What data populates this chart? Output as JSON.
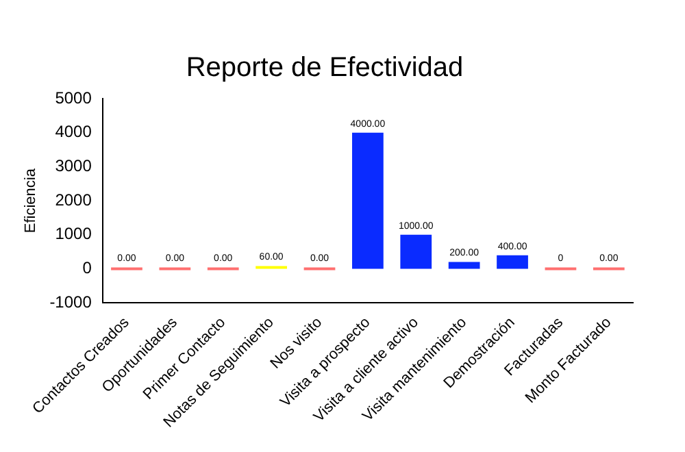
{
  "chart_data": {
    "type": "bar",
    "title": "Reporte de Efectividad",
    "ylabel": "Eficiencia",
    "categories": [
      "Contactos Creados",
      "Oportunidades",
      "Primer Contacto",
      "Notas de Seguimiento",
      "Nos visito",
      "Visita a prospecto",
      "Visita a cliente activo",
      "Visita mantenimiento",
      "Demostración",
      "Facturadas",
      "Monto Facturado"
    ],
    "values": [
      0,
      0,
      0,
      60,
      0,
      4000,
      1000,
      200,
      400,
      0,
      0
    ],
    "colors": [
      "#ff6f6f",
      "#ff6f6f",
      "#ff6f6f",
      "#ffff00",
      "#ff6f6f",
      "#0a2bff",
      "#0a2bff",
      "#0a2bff",
      "#0a2bff",
      "#ff6f6f",
      "#ff6f6f"
    ],
    "value_labels": [
      "0.00",
      "0.00",
      "0.00",
      "60.00",
      "0.00",
      "4000.00",
      "1000.00",
      "200.00",
      "400.00",
      "0",
      "0.00"
    ],
    "ylim": [
      -1000,
      5000
    ],
    "yticks": [
      -1000,
      0,
      1000,
      2000,
      3000,
      4000,
      5000
    ],
    "grid": false,
    "legend": false
  }
}
